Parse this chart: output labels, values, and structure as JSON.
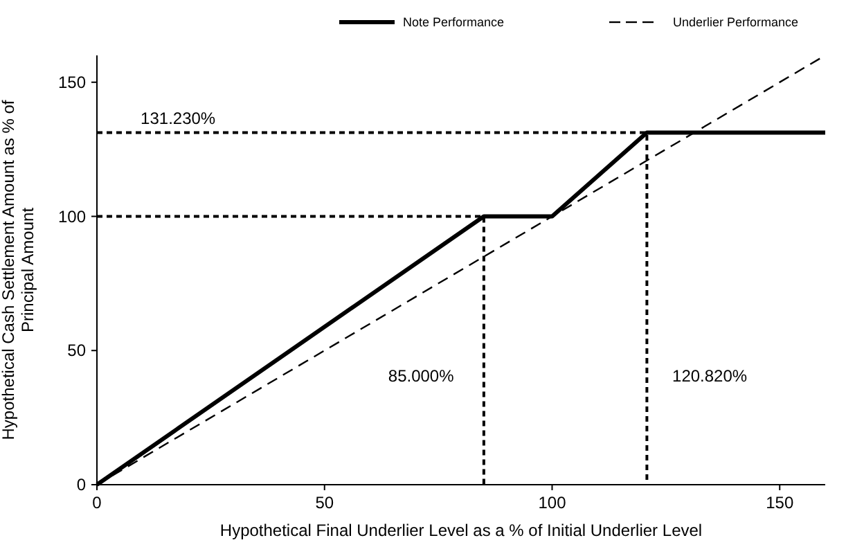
{
  "chart_data": {
    "type": "line",
    "xlabel": "Hypothetical Final Underlier Level as a % of Initial Underlier Level",
    "ylabel": "Hypothetical Cash Settlement Amount as % of Principal Amount",
    "xlim": [
      0,
      160
    ],
    "ylim": [
      0,
      160
    ],
    "xticks": [
      0,
      50,
      100,
      150
    ],
    "yticks": [
      0,
      50,
      100,
      150
    ],
    "grid": false,
    "legend": "top",
    "marker": "none",
    "series": [
      {
        "name": "Note Performance",
        "color": "#000000",
        "line_style": "solid",
        "x": [
          0,
          85,
          100,
          120.82,
          160
        ],
        "values": [
          0,
          100,
          100,
          131.23,
          131.23
        ]
      },
      {
        "name": "Underlier Performance",
        "color": "#000000",
        "line_style": "dashed",
        "x": [
          0,
          160
        ],
        "values": [
          0,
          160
        ]
      },
      {
        "color": "#000000",
        "line_style": "dotted",
        "x": [
          0,
          85,
          85
        ],
        "values": [
          100,
          100,
          0
        ]
      },
      {
        "color": "#000000",
        "line_style": "dotted",
        "x": [
          0,
          120.82,
          120.82
        ],
        "values": [
          131.23,
          131.23,
          0
        ]
      }
    ],
    "annotations": [
      "131.230%",
      "85.000%",
      "120.820%"
    ]
  }
}
